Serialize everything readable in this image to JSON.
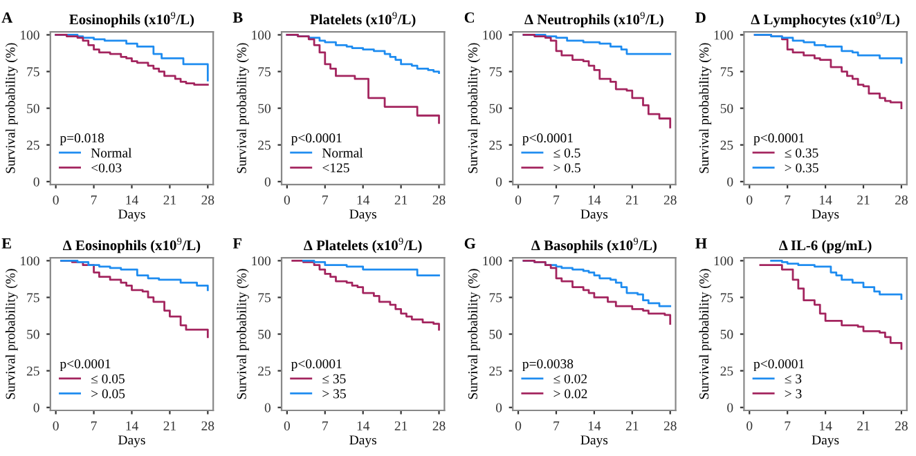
{
  "chart_data": [
    {
      "type": "step",
      "title": "Eosinophils (x10$^{9}$/L)",
      "xlabel": "Days",
      "ylabel": "Survival probability (%)",
      "xlim": [
        -1,
        29
      ],
      "ylim": [
        -2,
        102
      ],
      "xticks": [
        0,
        7,
        14,
        21,
        28
      ],
      "yticks": [
        0,
        25,
        50,
        75,
        100
      ],
      "legend": "bottom left",
      "legend_title": "p=0.018",
      "annotations": [
        "A"
      ],
      "series": [
        {
          "name": "Normal",
          "color": "#1e8cf0",
          "x": [
            0,
            4,
            5,
            7,
            9,
            13,
            15,
            18,
            19.5,
            23.5,
            28
          ],
          "values": [
            100,
            99,
            98,
            97,
            96,
            94,
            92,
            87,
            84,
            80,
            69
          ]
        },
        {
          "name": "<0.03",
          "color": "#a3245e",
          "x": [
            0,
            2,
            4,
            5,
            6,
            7,
            8,
            10,
            12,
            13,
            14,
            15,
            17,
            18,
            19,
            20,
            22,
            23,
            24,
            25.5,
            28
          ],
          "values": [
            100,
            99,
            98,
            96,
            93,
            90,
            88,
            87,
            85,
            84,
            82,
            81,
            79,
            77,
            75,
            72,
            70,
            68,
            67,
            66,
            66
          ]
        }
      ]
    },
    {
      "type": "step",
      "title": "Platelets (x10$^{9}$/L)",
      "xlabel": "Days",
      "ylabel": "Survival probability (%)",
      "xlim": [
        -1,
        29
      ],
      "ylim": [
        -2,
        102
      ],
      "xticks": [
        0,
        7,
        14,
        21,
        28
      ],
      "yticks": [
        0,
        25,
        50,
        75,
        100
      ],
      "legend": "bottom left",
      "legend_title": "p<0.0001",
      "annotations": [
        "B"
      ],
      "series": [
        {
          "name": "Normal",
          "color": "#1e8cf0",
          "x": [
            0,
            2,
            4,
            6,
            7,
            9,
            11,
            12,
            14,
            16,
            18,
            19,
            20,
            21,
            23,
            24,
            26,
            27,
            28
          ],
          "values": [
            100,
            99,
            98,
            96,
            95,
            93,
            92,
            91,
            90,
            89,
            87,
            85,
            83,
            80,
            79,
            77,
            76,
            75,
            74
          ]
        },
        {
          "name": "<125",
          "color": "#a3245e",
          "x": [
            0,
            2,
            4,
            5,
            6,
            7,
            8,
            9,
            12.5,
            15,
            18,
            24,
            28
          ],
          "values": [
            100,
            99,
            97,
            93,
            88,
            80,
            77,
            72,
            70,
            57,
            51,
            45,
            40
          ]
        }
      ]
    },
    {
      "type": "step",
      "title": "Δ Neutrophils (x10$^{9}$/L)",
      "xlabel": "Days",
      "ylabel": "Survival probability (%)",
      "xlim": [
        -1,
        29
      ],
      "ylim": [
        -2,
        102
      ],
      "xticks": [
        0,
        7,
        14,
        21,
        28
      ],
      "yticks": [
        0,
        25,
        50,
        75,
        100
      ],
      "legend": "bottom left",
      "legend_title": "p<0.0001",
      "annotations": [
        "C"
      ],
      "series": [
        {
          "name": "≤ 0.5",
          "color": "#1e8cf0",
          "x": [
            1,
            5,
            7,
            9,
            12,
            15,
            17,
            19,
            20,
            28
          ],
          "values": [
            100,
            99,
            98,
            96,
            95,
            94,
            92,
            90,
            87,
            87
          ]
        },
        {
          "name": "> 0.5",
          "color": "#a3245e",
          "x": [
            1,
            3,
            5,
            6,
            7,
            8,
            10,
            12,
            13,
            14,
            15,
            17,
            18,
            20,
            21,
            23,
            24,
            26,
            28
          ],
          "values": [
            100,
            99,
            98,
            96,
            89,
            86,
            83,
            82,
            79,
            76,
            70,
            68,
            63,
            62,
            57,
            52,
            46,
            43,
            37
          ]
        }
      ]
    },
    {
      "type": "step",
      "title": "Δ Lymphocytes (x10$^{9}$/L)",
      "xlabel": "Days",
      "ylabel": "Survival probability (%)",
      "xlim": [
        -1,
        29
      ],
      "ylim": [
        -2,
        102
      ],
      "xticks": [
        0,
        7,
        14,
        21,
        28
      ],
      "yticks": [
        0,
        25,
        50,
        75,
        100
      ],
      "legend": "bottom left",
      "legend_title": "p<0.0001",
      "annotations": [
        "D"
      ],
      "series": [
        {
          "name": "≤ 0.35",
          "color": "#a3245e",
          "x": [
            1,
            4,
            6,
            7,
            8,
            10,
            12,
            13,
            15,
            17,
            18,
            19,
            20,
            21,
            22,
            24,
            25,
            26,
            28
          ],
          "values": [
            100,
            99,
            97,
            90,
            88,
            86,
            84,
            83,
            78,
            75,
            72,
            70,
            66,
            65,
            60,
            57,
            55,
            54,
            50
          ]
        },
        {
          "name": "> 0.35",
          "color": "#1e8cf0",
          "x": [
            1,
            4,
            6,
            8,
            10,
            12,
            14,
            17,
            19,
            20,
            24,
            28
          ],
          "values": [
            100,
            99,
            98,
            96,
            95,
            93,
            92,
            89,
            88,
            86,
            84,
            81
          ]
        }
      ]
    },
    {
      "type": "step",
      "title": "Δ Eosinophils (x10$^{9}$/L)",
      "xlabel": "Days",
      "ylabel": "Survival probability (%)",
      "xlim": [
        -1,
        29
      ],
      "ylim": [
        -2,
        102
      ],
      "xticks": [
        0,
        7,
        14,
        21,
        28
      ],
      "yticks": [
        0,
        25,
        50,
        75,
        100
      ],
      "legend": "bottom left",
      "legend_title": "p<0.0001",
      "annotations": [
        "E"
      ],
      "series": [
        {
          "name": "≤ 0.05",
          "color": "#a3245e",
          "x": [
            1,
            3,
            5,
            7,
            8,
            10,
            12,
            13,
            14,
            16,
            17,
            18,
            20,
            21,
            23,
            24,
            28
          ],
          "values": [
            100,
            99,
            97,
            92,
            89,
            87,
            85,
            83,
            80,
            79,
            75,
            72,
            66,
            62,
            56,
            53,
            48
          ]
        },
        {
          "name": "> 0.05",
          "color": "#1e8cf0",
          "x": [
            1,
            4,
            6,
            8,
            10,
            12,
            15,
            17,
            19,
            23,
            26,
            28
          ],
          "values": [
            100,
            99,
            97,
            96,
            95,
            94,
            90,
            88,
            87,
            85,
            83,
            80
          ]
        }
      ]
    },
    {
      "type": "step",
      "title": "Δ Platelets (x10$^{9}$/L)",
      "xlabel": "Days",
      "ylabel": "Survival probability (%)",
      "xlim": [
        -1,
        29
      ],
      "ylim": [
        -2,
        102
      ],
      "xticks": [
        0,
        7,
        14,
        21,
        28
      ],
      "yticks": [
        0,
        25,
        50,
        75,
        100
      ],
      "legend": "bottom left",
      "legend_title": "p<0.0001",
      "annotations": [
        "F"
      ],
      "series": [
        {
          "name": "≤ 35",
          "color": "#a3245e",
          "x": [
            1,
            3,
            5,
            6,
            7,
            8,
            9,
            11,
            12,
            13,
            14,
            16,
            17,
            19,
            20,
            21,
            22,
            23,
            25,
            27,
            28
          ],
          "values": [
            100,
            99,
            97,
            94,
            91,
            89,
            86,
            85,
            83,
            82,
            78,
            76,
            72,
            70,
            67,
            64,
            62,
            60,
            58,
            57,
            53
          ]
        },
        {
          "name": "> 35",
          "color": "#1e8cf0",
          "x": [
            3,
            5,
            7,
            11,
            14,
            24,
            28
          ],
          "values": [
            100,
            99,
            97,
            96,
            94,
            90,
            90
          ]
        }
      ]
    },
    {
      "type": "step",
      "title": "Δ Basophils (x10$^{9}$/L)",
      "xlabel": "Days",
      "ylabel": "Survival probability (%)",
      "xlim": [
        -1,
        29
      ],
      "ylim": [
        -2,
        102
      ],
      "xticks": [
        0,
        7,
        14,
        21,
        28
      ],
      "yticks": [
        0,
        25,
        50,
        75,
        100
      ],
      "legend": "bottom left",
      "legend_title": "p=0.0038",
      "annotations": [
        "G"
      ],
      "series": [
        {
          "name": "≤ 0.02",
          "color": "#1e8cf0",
          "x": [
            1,
            3,
            5,
            7,
            8,
            10,
            12,
            13,
            14,
            15,
            17,
            18,
            19,
            20,
            22,
            23,
            24,
            26,
            28
          ],
          "values": [
            100,
            99,
            97,
            96,
            95,
            94,
            93,
            92,
            90,
            88,
            87,
            85,
            82,
            78,
            77,
            73,
            71,
            69,
            69
          ]
        },
        {
          "name": "> 0.02",
          "color": "#a3245e",
          "x": [
            1,
            3,
            5,
            6,
            7,
            8,
            10,
            12,
            13,
            14,
            16.5,
            18,
            21,
            23,
            24,
            27,
            28
          ],
          "values": [
            100,
            99,
            97,
            95,
            88,
            86,
            82,
            80,
            78,
            75,
            72,
            69,
            67,
            66,
            64,
            63,
            57
          ]
        }
      ]
    },
    {
      "type": "step",
      "title": "Δ IL-6 (pg/mL)",
      "xlabel": "Days",
      "ylabel": "Survival probability (%)",
      "xlim": [
        -1,
        29
      ],
      "ylim": [
        -2,
        102
      ],
      "xticks": [
        0,
        7,
        14,
        21,
        28
      ],
      "yticks": [
        0,
        25,
        50,
        75,
        100
      ],
      "legend": "bottom left",
      "legend_title": "p<0.0001",
      "annotations": [
        "H"
      ],
      "series": [
        {
          "name": "≤ 3",
          "color": "#1e8cf0",
          "x": [
            4,
            6,
            7,
            9,
            12,
            15,
            16,
            17,
            19,
            21,
            23,
            24,
            28
          ],
          "values": [
            100,
            99,
            98,
            97,
            96,
            92,
            90,
            87,
            85,
            82,
            79,
            77,
            74
          ]
        },
        {
          "name": "> 3",
          "color": "#a3245e",
          "x": [
            2,
            6,
            8,
            9,
            10,
            12,
            13,
            14,
            17,
            20,
            21,
            24,
            25,
            26,
            28
          ],
          "values": [
            97,
            94,
            87,
            81,
            73,
            70,
            64,
            59,
            56,
            55,
            52,
            51,
            48,
            44,
            40
          ]
        }
      ]
    }
  ]
}
